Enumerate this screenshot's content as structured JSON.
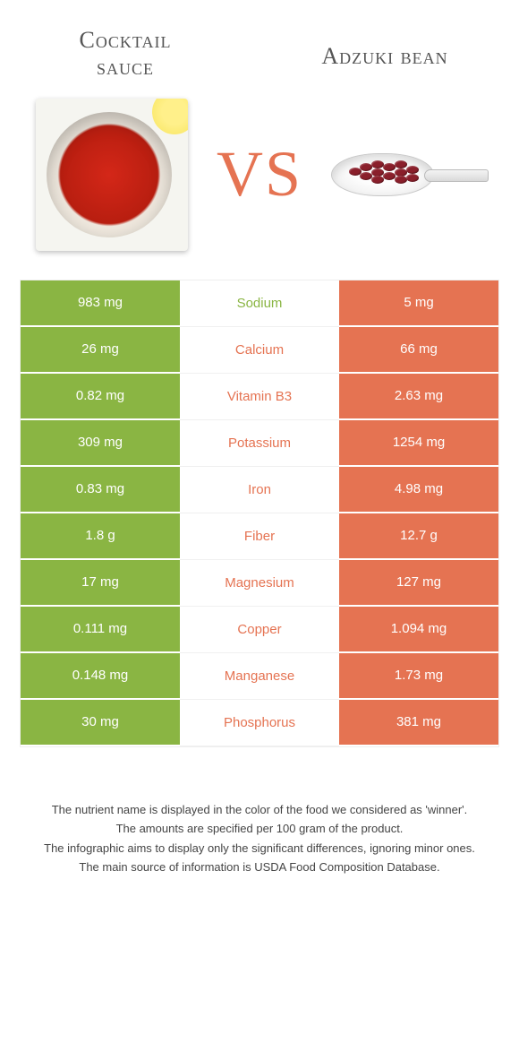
{
  "header": {
    "left_title_line1": "Cocktail",
    "left_title_line2": "sauce",
    "right_title": "Adzuki bean",
    "vs": "VS"
  },
  "colors": {
    "green": "#8ab543",
    "orange": "#e57352",
    "text_mid_green": "#8ab543",
    "text_mid_orange": "#e57352"
  },
  "table": {
    "rows": [
      {
        "left": "983 mg",
        "label": "Sodium",
        "right": "5 mg",
        "winner": "left"
      },
      {
        "left": "26 mg",
        "label": "Calcium",
        "right": "66 mg",
        "winner": "right"
      },
      {
        "left": "0.82 mg",
        "label": "Vitamin B3",
        "right": "2.63 mg",
        "winner": "right"
      },
      {
        "left": "309 mg",
        "label": "Potassium",
        "right": "1254 mg",
        "winner": "right"
      },
      {
        "left": "0.83 mg",
        "label": "Iron",
        "right": "4.98 mg",
        "winner": "right"
      },
      {
        "left": "1.8 g",
        "label": "Fiber",
        "right": "12.7 g",
        "winner": "right"
      },
      {
        "left": "17 mg",
        "label": "Magnesium",
        "right": "127 mg",
        "winner": "right"
      },
      {
        "left": "0.111 mg",
        "label": "Copper",
        "right": "1.094 mg",
        "winner": "right"
      },
      {
        "left": "0.148 mg",
        "label": "Manganese",
        "right": "1.73 mg",
        "winner": "right"
      },
      {
        "left": "30 mg",
        "label": "Phosphorus",
        "right": "381 mg",
        "winner": "right"
      }
    ]
  },
  "footnotes": [
    "The nutrient name is displayed in the color of the food we considered as 'winner'.",
    "The amounts are specified per 100 gram of the product.",
    "The infographic aims to display only the significant differences, ignoring minor ones.",
    "The main source of information is USDA Food Composition Database."
  ]
}
